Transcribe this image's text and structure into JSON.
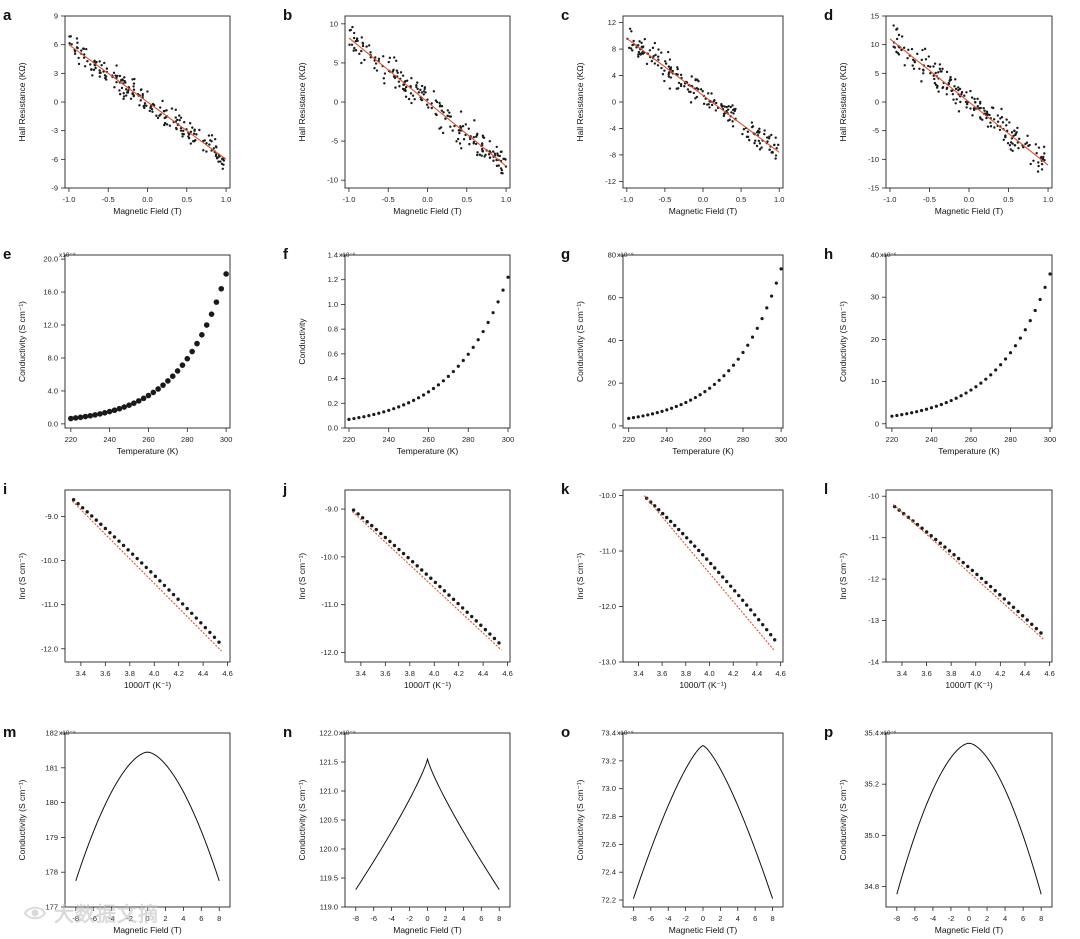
{
  "colors": {
    "marker": "#1a1a1a",
    "fit_line": "#d9532f",
    "axis": "#222222"
  },
  "watermark": {
    "text": "大数据文摘",
    "icon": "eye-logo-icon"
  },
  "chart_data": [
    {
      "panel": "a",
      "type": "scatter",
      "xlabel": "Magnetic Field (T)",
      "ylabel": "Hall Resistance (KΩ)",
      "xlim": [
        -1.05,
        1.05
      ],
      "ylim": [
        -9,
        9
      ],
      "xticks": [
        -1.0,
        -0.5,
        0.0,
        0.5,
        1.0
      ],
      "xticklabels": [
        "-1.0",
        "-0.5",
        "0.0",
        "0.5",
        "1.0"
      ],
      "yticks": [
        -9,
        -6,
        -3,
        0,
        3,
        6,
        9
      ],
      "yticklabels": [
        "-9",
        "-6",
        "-3",
        "0",
        "3",
        "6",
        "9"
      ],
      "fit": {
        "x": [
          -1,
          1
        ],
        "y": [
          6,
          -6
        ]
      },
      "scatter": {
        "count": 200,
        "x_range": [
          -1,
          1
        ],
        "y_at_xmin": 6,
        "y_at_xmax": -6,
        "noise": 1.0
      },
      "marker_size": 1.2
    },
    {
      "panel": "b",
      "type": "scatter",
      "xlabel": "Magnetic Field (T)",
      "ylabel": "Hall Resistance (KΩ)",
      "xlim": [
        -1.05,
        1.05
      ],
      "ylim": [
        -11,
        11
      ],
      "xticks": [
        -1.0,
        -0.5,
        0.0,
        0.5,
        1.0
      ],
      "xticklabels": [
        "-1.0",
        "-0.5",
        "0.0",
        "0.5",
        "1.0"
      ],
      "yticks": [
        -10,
        -5,
        0,
        5,
        10
      ],
      "yticklabels": [
        "-10",
        "-5",
        "0",
        "5",
        "10"
      ],
      "fit": {
        "x": [
          -1,
          1
        ],
        "y": [
          8.2,
          -8.2
        ]
      },
      "scatter": {
        "count": 200,
        "x_range": [
          -1,
          1
        ],
        "y_at_xmin": 8.2,
        "y_at_xmax": -8.2,
        "noise": 1.3
      },
      "marker_size": 1.2
    },
    {
      "panel": "c",
      "type": "scatter",
      "xlabel": "Magnetic Field (T)",
      "ylabel": "Hall Resistance (KΩ)",
      "xlim": [
        -1.05,
        1.05
      ],
      "ylim": [
        -13,
        13
      ],
      "xticks": [
        -1.0,
        -0.5,
        0.0,
        0.5,
        1.0
      ],
      "xticklabels": [
        "-1.0",
        "-0.5",
        "0.0",
        "0.5",
        "1.0"
      ],
      "yticks": [
        -12,
        -8,
        -4,
        0,
        4,
        8,
        12
      ],
      "yticklabels": [
        "-12",
        "-8",
        "-4",
        "0",
        "4",
        "8",
        "12"
      ],
      "fit": {
        "x": [
          -1,
          1
        ],
        "y": [
          9.6,
          -7.6
        ]
      },
      "scatter": {
        "count": 200,
        "x_range": [
          -1,
          1
        ],
        "y_at_xmin": 9.6,
        "y_at_xmax": -7.6,
        "noise": 1.5
      },
      "marker_size": 1.2
    },
    {
      "panel": "d",
      "type": "scatter",
      "xlabel": "Magnetic Field (T)",
      "ylabel": "Hall Resistance (KΩ)",
      "xlim": [
        -1.05,
        1.05
      ],
      "ylim": [
        -15,
        15
      ],
      "xticks": [
        -1.0,
        -0.5,
        0.0,
        0.5,
        1.0
      ],
      "xticklabels": [
        "-1.0",
        "-0.5",
        "0.0",
        "0.5",
        "1.0"
      ],
      "yticks": [
        -15,
        -10,
        -5,
        0,
        5,
        10,
        15
      ],
      "yticklabels": [
        "-15",
        "-10",
        "-5",
        "0",
        "5",
        "10",
        "15"
      ],
      "fit": {
        "x": [
          -1,
          1
        ],
        "y": [
          11,
          -11
        ]
      },
      "scatter": {
        "count": 200,
        "x_range": [
          -1,
          1
        ],
        "y_at_xmin": 11,
        "y_at_xmax": -11,
        "noise": 1.8
      },
      "marker_size": 1.2
    },
    {
      "panel": "e",
      "type": "scatter",
      "xlabel": "Temperature (K)",
      "ylabel": "Conductivity (S cm⁻¹)",
      "xlim": [
        217,
        302
      ],
      "ylim": [
        -0.5,
        20.5
      ],
      "xticks": [
        220,
        240,
        260,
        280,
        300
      ],
      "xticklabels": [
        "220",
        "240",
        "260",
        "280",
        "300"
      ],
      "yticks": [
        0,
        4,
        8,
        12,
        16,
        20
      ],
      "yticklabels": [
        "0.0",
        "4.0",
        "8.0",
        "12.0",
        "16.0",
        "20.0"
      ],
      "exponent": "x10⁻⁹",
      "curve": {
        "x_range": [
          220,
          300
        ],
        "count": 33,
        "y_at_xmin": 0.65,
        "y_at_xmax": 18.2
      },
      "marker_size": 2.8
    },
    {
      "panel": "f",
      "type": "scatter",
      "xlabel": "Temperature (K)",
      "ylabel": "Conductivity",
      "xlim": [
        218,
        301
      ],
      "ylim": [
        0,
        1.4
      ],
      "xticks": [
        220,
        240,
        260,
        280,
        300
      ],
      "xticklabels": [
        "220",
        "240",
        "260",
        "280",
        "300"
      ],
      "yticks": [
        0,
        0.2,
        0.4,
        0.6,
        0.8,
        1.0,
        1.2,
        1.4
      ],
      "yticklabels": [
        "0.0",
        "0.2",
        "0.4",
        "0.6",
        "0.8",
        "1.0",
        "1.2",
        "1.4"
      ],
      "exponent": "x10⁻⁶",
      "curve": {
        "x_range": [
          220,
          300
        ],
        "count": 33,
        "y_at_xmin": 0.07,
        "y_at_xmax": 1.22
      },
      "marker_size": 1.6
    },
    {
      "panel": "g",
      "type": "scatter",
      "xlabel": "Temperature (K)",
      "ylabel": "Conductivity (S cm⁻¹)",
      "xlim": [
        217,
        301
      ],
      "ylim": [
        -1,
        80
      ],
      "xticks": [
        220,
        240,
        260,
        280,
        300
      ],
      "xticklabels": [
        "220",
        "240",
        "260",
        "280",
        "300"
      ],
      "yticks": [
        0,
        20,
        40,
        60,
        80
      ],
      "yticklabels": [
        "0",
        "20",
        "40",
        "60",
        "80"
      ],
      "exponent": "x10⁻⁹",
      "curve": {
        "x_range": [
          220,
          300
        ],
        "count": 33,
        "y_at_xmin": 3.5,
        "y_at_xmax": 73.5
      },
      "marker_size": 1.6
    },
    {
      "panel": "h",
      "type": "scatter",
      "xlabel": "Temperature (K)",
      "ylabel": "Conductivity (S cm⁻¹)",
      "xlim": [
        217,
        301
      ],
      "ylim": [
        -1,
        40
      ],
      "xticks": [
        220,
        240,
        260,
        280,
        300
      ],
      "xticklabels": [
        "220",
        "240",
        "260",
        "280",
        "300"
      ],
      "yticks": [
        0,
        10,
        20,
        30,
        40
      ],
      "yticklabels": [
        "0",
        "10",
        "20",
        "30",
        "40"
      ],
      "exponent": "x10⁻⁶",
      "curve": {
        "x_range": [
          220,
          300
        ],
        "count": 33,
        "y_at_xmin": 1.8,
        "y_at_xmax": 35.5
      },
      "marker_size": 1.6
    },
    {
      "panel": "i",
      "type": "scatter",
      "xlabel": "1000/T (K⁻¹)",
      "ylabel": "lnσ (S cm⁻¹)",
      "xlim": [
        3.27,
        4.62
      ],
      "ylim": [
        -12.3,
        -8.4
      ],
      "xticks": [
        3.4,
        3.6,
        3.8,
        4.0,
        4.2,
        4.4,
        4.6
      ],
      "xticklabels": [
        "3.4",
        "3.6",
        "3.8",
        "4.0",
        "4.2",
        "4.4",
        "4.6"
      ],
      "yticks": [
        -12,
        -11,
        -10,
        -9
      ],
      "yticklabels": [
        "-12.0",
        "-11.0",
        "-10.0",
        "-9.0"
      ],
      "fit": {
        "x": [
          3.33,
          4.55
        ],
        "y": [
          -8.65,
          -12.05
        ]
      },
      "curve": {
        "x_range": [
          3.34,
          4.53
        ],
        "count": 33,
        "y_at_xmin": -8.62,
        "y_at_xmax": -11.85,
        "sag": 0.08
      },
      "marker_size": 1.7
    },
    {
      "panel": "j",
      "type": "scatter",
      "xlabel": "1000/T (K⁻¹)",
      "ylabel": "lnσ (S cm⁻¹)",
      "xlim": [
        3.27,
        4.62
      ],
      "ylim": [
        -12.2,
        -8.6
      ],
      "xticks": [
        3.4,
        3.6,
        3.8,
        4.0,
        4.2,
        4.4,
        4.6
      ],
      "xticklabels": [
        "3.4",
        "3.6",
        "3.8",
        "4.0",
        "4.2",
        "4.4",
        "4.6"
      ],
      "yticks": [
        -12,
        -11,
        -10,
        -9
      ],
      "yticklabels": [
        "-12.0",
        "-11.0",
        "-10.0",
        "-9.0"
      ],
      "fit": {
        "x": [
          3.33,
          4.55
        ],
        "y": [
          -9.05,
          -11.95
        ]
      },
      "curve": {
        "x_range": [
          3.34,
          4.53
        ],
        "count": 33,
        "y_at_xmin": -9.02,
        "y_at_xmax": -11.8,
        "sag": 0.05
      },
      "marker_size": 1.7
    },
    {
      "panel": "k",
      "type": "scatter",
      "xlabel": "1000/T (K⁻¹)",
      "ylabel": "lnσ (S cm⁻¹)",
      "xlim": [
        3.27,
        4.62
      ],
      "ylim": [
        -13.0,
        -9.9
      ],
      "xticks": [
        3.4,
        3.6,
        3.8,
        4.0,
        4.2,
        4.4,
        4.6
      ],
      "xticklabels": [
        "3.4",
        "3.6",
        "3.8",
        "4.0",
        "4.2",
        "4.4",
        "4.6"
      ],
      "yticks": [
        -13,
        -12,
        -11,
        -10
      ],
      "yticklabels": [
        "-13.0",
        "-12.0",
        "-11.0",
        "-10.0"
      ],
      "fit": {
        "x": [
          3.45,
          4.55
        ],
        "y": [
          -10.0,
          -12.8
        ]
      },
      "curve": {
        "x_range": [
          3.47,
          4.55
        ],
        "count": 33,
        "y_at_xmin": -10.05,
        "y_at_xmax": -12.6,
        "sag": 0.1
      },
      "marker_size": 1.7
    },
    {
      "panel": "l",
      "type": "scatter",
      "xlabel": "1000/T (K⁻¹)",
      "ylabel": "lnσ (S cm⁻¹)",
      "xlim": [
        3.27,
        4.62
      ],
      "ylim": [
        -14.0,
        -9.85
      ],
      "xticks": [
        3.4,
        3.6,
        3.8,
        4.0,
        4.2,
        4.4,
        4.6
      ],
      "xticklabels": [
        "3.4",
        "3.6",
        "3.8",
        "4.0",
        "4.2",
        "4.4",
        "4.6"
      ],
      "yticks": [
        -14,
        -13,
        -12,
        -11,
        -10
      ],
      "yticklabels": [
        "-14",
        "-13",
        "-12",
        "-11",
        "-10"
      ],
      "fit": {
        "x": [
          3.33,
          4.55
        ],
        "y": [
          -10.2,
          -13.45
        ]
      },
      "curve": {
        "x_range": [
          3.34,
          4.53
        ],
        "count": 33,
        "y_at_xmin": -10.25,
        "y_at_xmax": -13.3,
        "sag": 0.08
      },
      "marker_size": 1.7
    },
    {
      "panel": "m",
      "type": "line",
      "xlabel": "Magnetic Field (T)",
      "ylabel": "Conductivity (S cm⁻¹)",
      "xlim": [
        -9.2,
        9.2
      ],
      "ylim": [
        177,
        182
      ],
      "xticks": [
        -8,
        -6,
        -4,
        -2,
        0,
        2,
        4,
        6,
        8
      ],
      "xticklabels": [
        "-8",
        "-6",
        "-4",
        "-2",
        "0",
        "2",
        "4",
        "6",
        "8"
      ],
      "yticks": [
        177,
        178,
        179,
        180,
        181,
        182
      ],
      "yticklabels": [
        "177",
        "178",
        "179",
        "180",
        "181",
        "182"
      ],
      "exponent": "x10⁻⁹",
      "peak": {
        "x_range": [
          -8,
          8
        ],
        "center": 0,
        "y_peak": 181.45,
        "y_edge": 177.75,
        "shape": "round"
      }
    },
    {
      "panel": "n",
      "type": "line",
      "xlabel": "Magnetic Field (T)",
      "ylabel": "Conductivity (S cm⁻¹)",
      "xlim": [
        -9.2,
        9.2
      ],
      "ylim": [
        119,
        122
      ],
      "xticks": [
        -8,
        -6,
        -4,
        -2,
        0,
        2,
        4,
        6,
        8
      ],
      "xticklabels": [
        "-8",
        "-6",
        "-4",
        "-2",
        "0",
        "2",
        "4",
        "6",
        "8"
      ],
      "yticks": [
        119,
        119.5,
        120,
        120.5,
        121,
        121.5,
        122
      ],
      "yticklabels": [
        "119.0",
        "119.5",
        "120.0",
        "120.5",
        "121.0",
        "121.5",
        "122.0"
      ],
      "exponent": "x10⁻⁹",
      "peak": {
        "x_range": [
          -8,
          8
        ],
        "center": 0,
        "y_peak": 121.55,
        "y_edge": 119.3,
        "shape": "cusp"
      }
    },
    {
      "panel": "o",
      "type": "line",
      "xlabel": "Magnetic Field (T)",
      "ylabel": "Conductivity (S cm⁻¹)",
      "xlim": [
        -9.2,
        9.2
      ],
      "ylim": [
        72.15,
        73.4
      ],
      "xticks": [
        -8,
        -6,
        -4,
        -2,
        0,
        2,
        4,
        6,
        8
      ],
      "xticklabels": [
        "-8",
        "-6",
        "-4",
        "-2",
        "0",
        "2",
        "4",
        "6",
        "8"
      ],
      "yticks": [
        72.2,
        72.4,
        72.6,
        72.8,
        73.0,
        73.2,
        73.4
      ],
      "yticklabels": [
        "72.2",
        "72.4",
        "72.6",
        "72.8",
        "73.0",
        "73.2",
        "73.4"
      ],
      "exponent": "x10⁻⁹",
      "peak": {
        "x_range": [
          -8,
          8
        ],
        "center": 0,
        "y_peak": 73.31,
        "y_edge": 72.21,
        "shape": "mid"
      }
    },
    {
      "panel": "p",
      "type": "line",
      "xlabel": "Magnetic Field (T)",
      "ylabel": "Conductivity (S cm⁻¹)",
      "xlim": [
        -9.2,
        9.2
      ],
      "ylim": [
        34.72,
        35.4
      ],
      "xticks": [
        -8,
        -6,
        -4,
        -2,
        0,
        2,
        4,
        6,
        8
      ],
      "xticklabels": [
        "-8",
        "-6",
        "-4",
        "-2",
        "0",
        "2",
        "4",
        "6",
        "8"
      ],
      "yticks": [
        34.8,
        35.0,
        35.2,
        35.4
      ],
      "yticklabels": [
        "34.8",
        "35.0",
        "35.2",
        "35.4"
      ],
      "exponent": "x10⁻⁶",
      "peak": {
        "x_range": [
          -8,
          8
        ],
        "center": 0,
        "y_peak": 35.36,
        "y_edge": 34.77,
        "shape": "round"
      }
    }
  ]
}
